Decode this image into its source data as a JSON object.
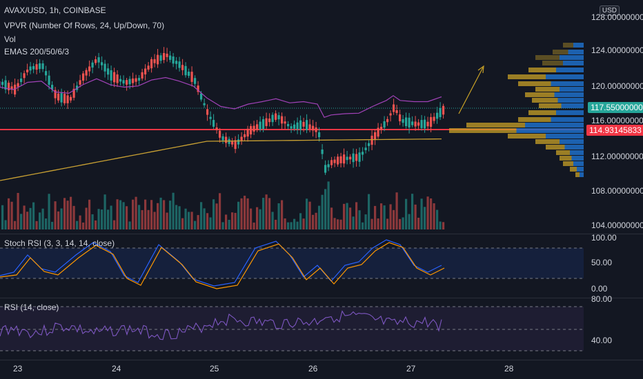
{
  "header": {
    "symbol": "AVAX/USD, 1h, COINBASE",
    "vpvr": "VPVR (Number Of Rows, 24, Up/Down, 70)",
    "vol": "Vol",
    "emas": "EMAS 200/50/6/3",
    "currency": "USD"
  },
  "price_axis": {
    "labels": [
      "128.00000000",
      "124.00000000",
      "120.00000000",
      "116.00000000",
      "112.00000000",
      "108.00000000",
      "104.00000000"
    ],
    "last_price": "117.55000000",
    "last_price_color": "#26a69a",
    "line_price": "114.93145833",
    "line_price_color": "#f23645"
  },
  "stoch": {
    "title": "Stoch RSI (3, 3, 14, 14, close)",
    "labels": [
      "100.00",
      "50.00",
      "0.00"
    ]
  },
  "rsi": {
    "title": "RSI (14, close)",
    "labels": [
      "80.00",
      "40.00"
    ]
  },
  "time_axis": {
    "labels": [
      "23",
      "24",
      "25",
      "26",
      "27",
      "28"
    ]
  },
  "colors": {
    "up": "#26a69a",
    "down": "#ef5350",
    "ema_orange": "#c8a033",
    "ema_purple": "#a142b8",
    "stoch_k": "#2962ff",
    "stoch_d": "#ff9800",
    "rsi": "#7e57c2",
    "vp_blue": "#1e6fc8",
    "vp_gold": "#c9a227"
  }
}
